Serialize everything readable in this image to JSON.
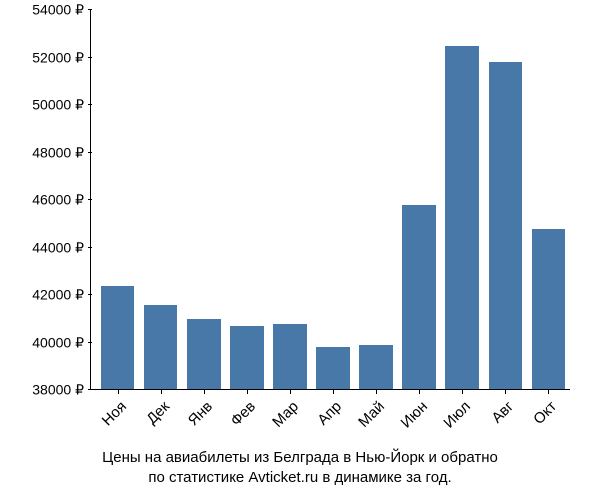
{
  "chart": {
    "type": "bar",
    "categories": [
      "Ноя",
      "Дек",
      "Янв",
      "Фев",
      "Мар",
      "Апр",
      "Май",
      "Июн",
      "Июл",
      "Авг",
      "Окт"
    ],
    "values": [
      42400,
      41600,
      41000,
      40700,
      40800,
      39800,
      39900,
      45800,
      52500,
      51800,
      44800
    ],
    "bar_color": "#4878a7",
    "background_color": "#ffffff",
    "ylim": [
      38000,
      54000
    ],
    "ytick_step": 2000,
    "y_tick_labels": [
      "38000 ₽",
      "40000 ₽",
      "42000 ₽",
      "44000 ₽",
      "46000 ₽",
      "48000 ₽",
      "50000 ₽",
      "52000 ₽",
      "54000 ₽"
    ],
    "y_tick_values": [
      38000,
      40000,
      42000,
      44000,
      46000,
      48000,
      50000,
      52000,
      54000
    ],
    "axis_color": "#000000",
    "tick_fontsize": 14,
    "label_fontsize": 15,
    "caption_fontsize": 15,
    "bar_width_ratio": 0.78,
    "caption_line1": "Цены на авиабилеты из Белграда в Нью-Йорк и обратно",
    "caption_line2": "по статистике Avticket.ru в динамике за год."
  }
}
